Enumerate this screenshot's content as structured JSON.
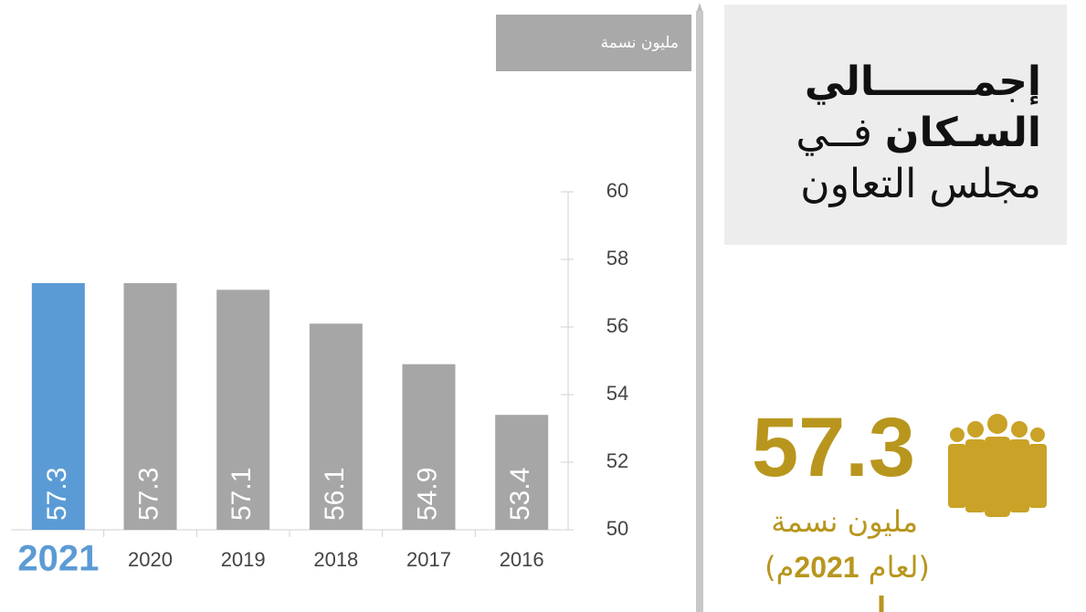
{
  "chart_data": {
    "type": "bar",
    "ylabel": "مليون نسمة",
    "categories": [
      "2021",
      "2020",
      "2019",
      "2018",
      "2017",
      "2016"
    ],
    "values": [
      57.3,
      57.3,
      57.1,
      56.1,
      54.9,
      53.4
    ],
    "colors": [
      "#5b9bd5",
      "#a6a6a6",
      "#a6a6a6",
      "#a6a6a6",
      "#a6a6a6",
      "#a6a6a6"
    ],
    "ylim": [
      50,
      60
    ],
    "yticks": [
      50,
      52,
      54,
      56,
      58,
      60
    ],
    "title_lines": [
      {
        "bold": "إجمـــــــالي"
      },
      {
        "bold": "السـكان",
        "regular": "فــي"
      },
      {
        "regular": "مجلس التعاون"
      }
    ],
    "highlight": {
      "value": 57.3,
      "unit": "مليون نسمة",
      "note_open": "(لعام",
      "note_year": "2021",
      "note_close": "م)"
    }
  }
}
